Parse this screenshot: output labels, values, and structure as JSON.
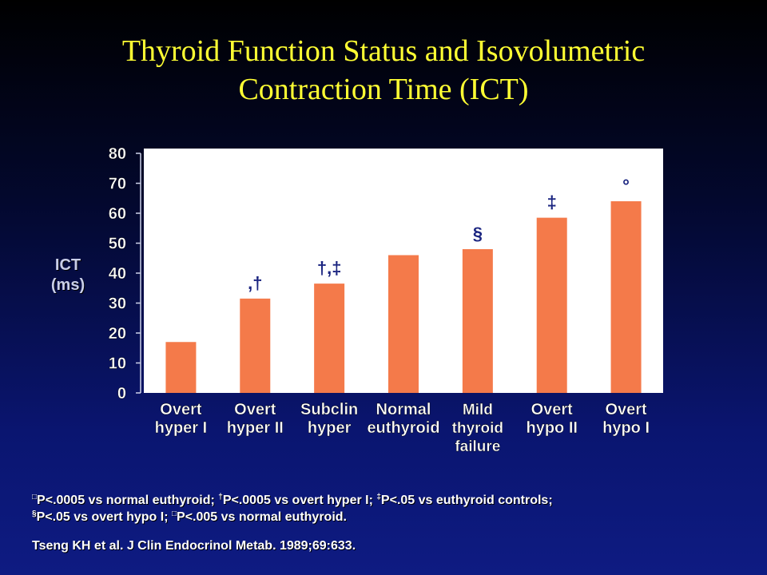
{
  "page": {
    "title_line1": "Thyroid Function Status and Isovolumetric",
    "title_line2": "Contraction Time (ICT)",
    "footnote_line1": [
      {
        "sym": "□",
        "text": "P<.0005 vs normal euthyroid; "
      },
      {
        "sym": "†",
        "text": "P<.0005 vs overt hyper I; "
      },
      {
        "sym": "‡",
        "text": "P<.05 vs euthyroid controls;"
      }
    ],
    "footnote_line2": [
      {
        "sym": "§",
        "text": "P<.05 vs overt hypo I; "
      },
      {
        "sym": "□",
        "text": "P<.005 vs normal euthyroid."
      }
    ],
    "citation": "Tseng KH et al. J Clin Endocrinol Metab. 1989;69:633."
  },
  "chart_data": {
    "type": "bar",
    "ylabel_lines": [
      "ICT",
      "(ms)"
    ],
    "ylim": [
      0,
      80
    ],
    "yticks": [
      0,
      10,
      20,
      30,
      40,
      50,
      60,
      70,
      80
    ],
    "categories": [
      [
        "Overt",
        "hyper I"
      ],
      [
        "Overt",
        "hyper II"
      ],
      [
        "Subclin",
        "hyper"
      ],
      [
        "Normal",
        "euthyroid"
      ],
      [
        "Mild",
        "thyroid",
        "failure"
      ],
      [
        "Overt",
        "hypo II"
      ],
      [
        "Overt",
        "hypo I"
      ]
    ],
    "values": [
      17,
      31.5,
      36.5,
      46,
      48,
      58.5,
      64
    ],
    "annotations": [
      "",
      ",†",
      "†,‡",
      "",
      "§",
      "‡",
      "°"
    ],
    "colors": {
      "bar": "#f47a4a",
      "plot_bg": "#ffffff",
      "axis": "#cfd3ea",
      "title": "#ffff33"
    },
    "grid": false
  }
}
